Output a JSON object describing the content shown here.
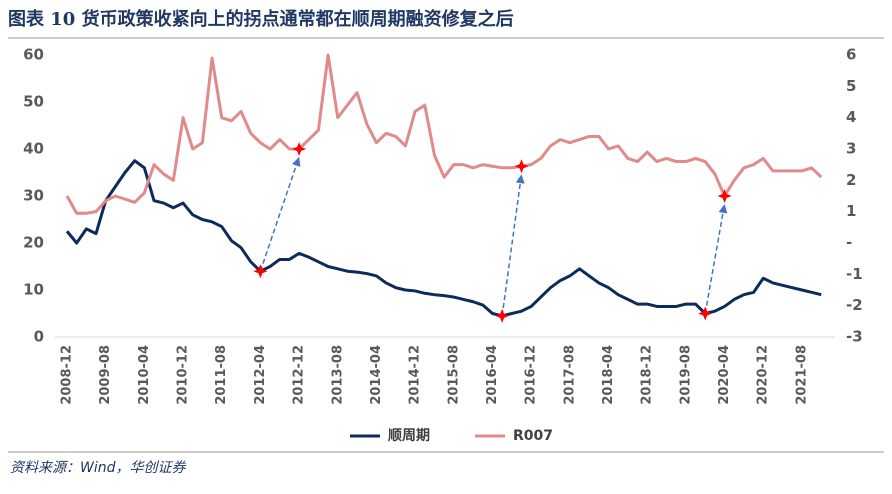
{
  "chart_data": {
    "type": "line",
    "title": "图表 10   货币政策收紧向上的拐点通常都在顺周期融资修复之后",
    "source": "资料来源：Wind，华创证券",
    "categories": [
      "2008-12",
      null,
      null,
      null,
      "2009-08",
      null,
      null,
      null,
      "2010-04",
      null,
      null,
      null,
      "2010-12",
      null,
      null,
      null,
      "2011-08",
      null,
      null,
      null,
      "2012-04",
      null,
      null,
      null,
      "2012-12",
      null,
      null,
      null,
      "2013-08",
      null,
      null,
      null,
      "2014-04",
      null,
      null,
      null,
      "2014-12",
      null,
      null,
      null,
      "2015-08",
      null,
      null,
      null,
      "2016-04",
      null,
      null,
      null,
      "2016-12",
      null,
      null,
      null,
      "2017-08",
      null,
      null,
      null,
      "2018-04",
      null,
      null,
      null,
      "2018-12",
      null,
      null,
      null,
      "2019-08",
      null,
      null,
      null,
      "2020-04",
      null,
      null,
      null,
      "2020-12",
      null,
      null,
      null,
      "2021-08",
      null,
      null
    ],
    "series": [
      {
        "name": "顺周期",
        "color": "#0d2a5c",
        "values": [
          22.5,
          20,
          23,
          22,
          29,
          32,
          35,
          37.5,
          36,
          29,
          28.5,
          27.5,
          28.5,
          26,
          25,
          24.5,
          23.5,
          20.5,
          19,
          16,
          14,
          15,
          16.5,
          16.5,
          17.8,
          17,
          16,
          15,
          14.5,
          14,
          13.8,
          13.5,
          13,
          11.5,
          10.5,
          10,
          9.8,
          9.3,
          9,
          8.8,
          8.5,
          8,
          7.5,
          6.8,
          5,
          4.5,
          5,
          5.5,
          6.5,
          8.5,
          10.5,
          12,
          13,
          14.5,
          13,
          11.5,
          10.5,
          9,
          8,
          7,
          7,
          6.5,
          6.5,
          6.5,
          7,
          7,
          5,
          5.5,
          6.5,
          8,
          9,
          9.5,
          12.5,
          11.5,
          11,
          10.5,
          10,
          9.5,
          9
        ]
      },
      {
        "name": "R007",
        "color": "#e08a8a",
        "axis": "y2",
        "values": [
          1.5,
          0.95,
          0.95,
          1.0,
          1.35,
          1.5,
          1.4,
          1.3,
          1.6,
          2.5,
          2.2,
          2.0,
          4.0,
          3.0,
          3.2,
          5.9,
          4.0,
          3.9,
          4.2,
          3.5,
          3.2,
          3.0,
          3.3,
          3.0,
          3.0,
          3.3,
          3.6,
          6.0,
          4.0,
          4.4,
          4.8,
          3.8,
          3.2,
          3.5,
          3.4,
          3.1,
          4.2,
          4.4,
          2.8,
          2.1,
          2.5,
          2.5,
          2.4,
          2.5,
          2.45,
          2.4,
          2.4,
          2.45,
          2.5,
          2.7,
          3.1,
          3.3,
          3.2,
          3.3,
          3.4,
          3.4,
          3.0,
          3.1,
          2.7,
          2.6,
          2.9,
          2.6,
          2.7,
          2.6,
          2.6,
          2.7,
          2.6,
          2.2,
          1.5,
          2.0,
          2.4,
          2.5,
          2.7,
          2.3,
          2.3,
          2.3,
          2.3,
          2.4,
          2.1
        ]
      }
    ],
    "ylim": [
      0,
      60
    ],
    "yticks": [
      0,
      10,
      20,
      30,
      40,
      50,
      60
    ],
    "y2lim": [
      -3,
      6
    ],
    "y2ticks": [
      -3,
      -2,
      -1,
      {
        "value": 0,
        "label": "-"
      },
      1,
      2,
      3,
      4,
      5,
      6
    ],
    "legend": "bottom"
  }
}
